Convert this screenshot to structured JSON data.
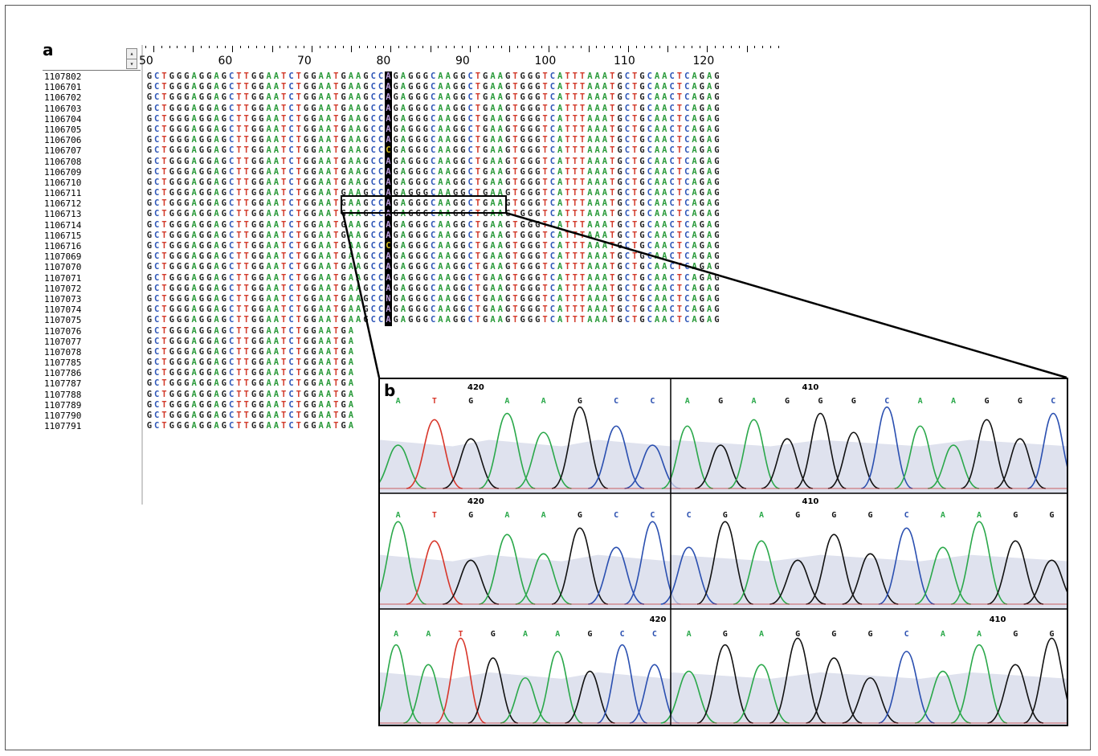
{
  "panel_labels": {
    "a": "a",
    "b": "b"
  },
  "alignment": {
    "ruler_numbers": [
      "50",
      "60",
      "70",
      "80",
      "90",
      "100",
      "110",
      "120"
    ],
    "colors": {
      "A": "#2a9a3a",
      "C": "#2d55b7",
      "G": "#222222",
      "T": "#d23a2a"
    },
    "reference_sequence": "GCTGGGAGGAGCTTGGAATCTGGAATGAAGCCAGAGGGCAAGGCTGAAGTGGGTCATTTAAATGCTGCAACTCAGAG",
    "highlight_column": 32,
    "rows": [
      {
        "id": "1107802",
        "seq": "GCTGGGAGGAGCTTGGAATCTGGAATGAAGCCAGAGGGCAAGGCTGAAGTGGGTCATTTAAATGCTGCAACTCAGAG"
      },
      {
        "id": "1106701",
        "seq": "GCTGGGAGGAGCTTGGAATCTGGAATGAAGCCAGAGGGCAAGGCTGAAGTGGGTCATTTAAATGCTGCAACTCAGAG"
      },
      {
        "id": "1106702",
        "seq": "GCTGGGAGGAGCTTGGAATCTGGAATGAAGCCAGAGGGCAAGGCTGAAGTGGGTCATTTAAATGCTGCAACTCAGAG"
      },
      {
        "id": "1106703",
        "seq": "GCTGGGAGGAGCTTGGAATCTGGAATGAAGCCAGAGGGCAAGGCTGAAGTGGGTCATTTAAATGCTGCAACTCAGAG"
      },
      {
        "id": "1106704",
        "seq": "GCTGGGAGGAGCTTGGAATCTGGAATGAAGCCAGAGGGCAAGGCTGAAGTGGGTCATTTAAATGCTGCAACTCAGAG"
      },
      {
        "id": "1106705",
        "seq": "GCTGGGAGGAGCTTGGAATCTGGAATGAAGCCAGAGGGCAAGGCTGAAGTGGGTCATTTAAATGCTGCAACTCAGAG"
      },
      {
        "id": "1106706",
        "seq": "GCTGGGAGGAGCTTGGAATCTGGAATGAAGCCAGAGGGCAAGGCTGAAGTGGGTCATTTAAATGCTGCAACTCAGAG"
      },
      {
        "id": "1106707",
        "seq": "GCTGGGAGGAGCTTGGAATCTGGAATGAAGCCCGAGGGCAAGGCTGAAGTGGGTCATTTAAATGCTGCAACTCAGAG"
      },
      {
        "id": "1106708",
        "seq": "GCTGGGAGGAGCTTGGAATCTGGAATGAAGCCAGAGGGCAAGGCTGAAGTGGGTCATTTAAATGCTGCAACTCAGAG"
      },
      {
        "id": "1106709",
        "seq": "GCTGGGAGGAGCTTGGAATCTGGAATGAAGCCAGAGGGCAAGGCTGAAGTGGGTCATTTAAATGCTGCAACTCAGAG"
      },
      {
        "id": "1106710",
        "seq": "GCTGGGAGGAGCTTGGAATCTGGAATGAAGCCAGAGGGCAAGGCTGAAGTGGGTCATTTAAATGCTGCAACTCAGAG"
      },
      {
        "id": "1106711",
        "seq": "GCTGGGAGGAGCTTGGAATCTGGAATGAAGCCAGAGGGCAAGGCTGAAGTGGGTCATTTAAATGCTGCAACTCAGAG"
      },
      {
        "id": "1106712",
        "seq": "GCTGGGAGGAGCTTGGAATCTGGAATGAAGCCAGAGGGCAAGGCTGAAGTGGGTCATTTAAATGCTGCAACTCAGAG"
      },
      {
        "id": "1106713",
        "seq": "GCTGGGAGGAGCTTGGAATCTGGAATGAAGCCAGAGGGCAAGGCTGAAGTGGGTCATTTAAATGCTGCAACTCAGAG"
      },
      {
        "id": "1106714",
        "seq": "GCTGGGAGGAGCTTGGAATCTGGAATGAAGCCAGAGGGCAAGGCTGAAGTGGGTCATTTAAATGCTGCAACTCAGAG"
      },
      {
        "id": "1106715",
        "seq": "GCTGGGAGGAGCTTGGAATCTGGAATGAAGCCAGAGGGCAAGGCTGAAGTGGGTCATTTAAATGCTGCAACTCAGAG"
      },
      {
        "id": "1106716",
        "seq": "GCTGGGAGGAGCTTGGAATCTGGAATGAAGCCCGAGGGCAAGGCTGAAGTGGGTCATTTAAATGCTGCAACTCAGAG"
      },
      {
        "id": "1107069",
        "seq": "GCTGGGAGGAGCTTGGAATCTGGAATGAAGCCAGAGGGCAAGGCTGAAGTGGGTCATTTAAATGCTGCAACTCAGAG"
      },
      {
        "id": "1107070",
        "seq": "GCTGGGAGGAGCTTGGAATCTGGAATGAAGCCAGAGGGCAAGGCTGAAGTGGGTCATTTAAATGCTGCAACTCAGAG"
      },
      {
        "id": "1107071",
        "seq": "GCTGGGAGGAGCTTGGAATCTGGAATGAAGCCAGAGGGCAAGGCTGAAGTGGGTCATTTAAATGCTGCAACTCAGAG"
      },
      {
        "id": "1107072",
        "seq": "GCTGGGAGGAGCTTGGAATCTGGAATGAAGCCAGAGGGCAAGGCTGAAGTGGGTCATTTAAATGCTGCAACTCAGAG"
      },
      {
        "id": "1107073",
        "seq": "GCTGGGAGGAGCTTGGAATCTGGAATGAAGCCNGAGGGCAAGGCTGAAGTGGGTCATTTAAATGCTGCAACTCAGAG"
      },
      {
        "id": "1107074",
        "seq": "GCTGGGAGGAGCTTGGAATCTGGAATGAAGCCAGAGGGCAAGGCTGAAGTGGGTCATTTAAATGCTGCAACTCAGAG"
      },
      {
        "id": "1107075",
        "seq": "GCTGGGAGGAGCTTGGAATCTGGAATGAAGCCAGAGGGCAAGGCTGAAGTGGGTCATTTAAATGCTGCAACTCAGAG"
      },
      {
        "id": "1107076",
        "seq": "GCTGGGAGGAGCTTGGAATCTGGAATGA"
      },
      {
        "id": "1107077",
        "seq": "GCTGGGAGGAGCTTGGAATCTGGAATGA"
      },
      {
        "id": "1107078",
        "seq": "GCTGGGAGGAGCTTGGAATCTGGAATGA"
      },
      {
        "id": "1107785",
        "seq": "GCTGGGAGGAGCTTGGAATCTGGAATGA"
      },
      {
        "id": "1107786",
        "seq": "GCTGGGAGGAGCTTGGAATCTGGAATGA"
      },
      {
        "id": "1107787",
        "seq": "GCTGGGAGGAGCTTGGAATCTGGAATGA"
      },
      {
        "id": "1107788",
        "seq": "GCTGGGAGGAGCTTGGAATCTGGAATGA"
      },
      {
        "id": "1107789",
        "seq": "GCTGGGAGGAGCTTGGAATCTGGAATGA"
      },
      {
        "id": "1107790",
        "seq": "GCTGGGAGGAGCTTGGAATCTGGAATGA"
      },
      {
        "id": "1107791",
        "seq": "GCTGGGAGGAGCTTGGAATCTGGAATGA"
      }
    ]
  },
  "chromatograms": {
    "trace_colors": {
      "A": "#2aa84a",
      "C": "#2a4fb0",
      "G": "#111111",
      "T": "#d8362a"
    },
    "panels": [
      {
        "name": "row1-left",
        "position_label": "420",
        "bases": [
          "A",
          "T",
          "G",
          "A",
          "A",
          "G",
          "C",
          "C"
        ]
      },
      {
        "name": "row1-right",
        "position_label": "410",
        "bases": [
          "A",
          "G",
          "A",
          "G",
          "G",
          "G",
          "C",
          "A",
          "A",
          "G",
          "G",
          "C"
        ]
      },
      {
        "name": "row2-left",
        "position_label": "420",
        "bases": [
          "A",
          "T",
          "G",
          "A",
          "A",
          "G",
          "C",
          "C"
        ]
      },
      {
        "name": "row2-right",
        "position_label": "410",
        "bases": [
          "C",
          "G",
          "A",
          "G",
          "G",
          "G",
          "C",
          "A",
          "A",
          "G",
          "G"
        ]
      },
      {
        "name": "row3-left",
        "position_label": "420",
        "bases": [
          "A",
          "A",
          "T",
          "G",
          "A",
          "A",
          "G",
          "C",
          "C"
        ]
      },
      {
        "name": "row3-right",
        "position_label": "410",
        "bases": [
          "A",
          "G",
          "A",
          "G",
          "G",
          "G",
          "C",
          "A",
          "A",
          "G",
          "G"
        ]
      }
    ]
  }
}
